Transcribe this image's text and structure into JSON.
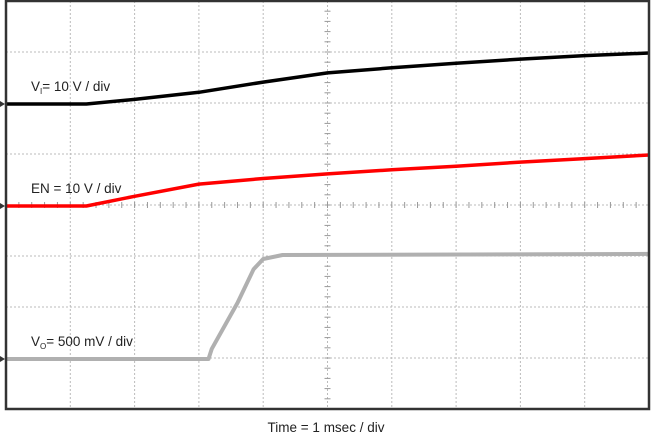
{
  "chart_data": {
    "type": "line",
    "title": "",
    "xlabel": "Time = 1 msec / div",
    "xlim": [
      0,
      10
    ],
    "ylim_divs": [
      -8,
      0
    ],
    "grid": true,
    "series": [
      {
        "name": "Vᵢ = 10 V / div",
        "label_main": "V",
        "label_sub": "I",
        "label_rest": "= 10 V / div",
        "color": "#000000",
        "scale_per_div": 10,
        "unit": "V",
        "x": [
          0,
          1.25,
          2,
          3,
          4,
          5,
          6,
          7,
          8,
          9,
          10
        ],
        "y": [
          0,
          0,
          0.9,
          2.3,
          4.3,
          6.1,
          7.1,
          8.0,
          8.8,
          9.5,
          10
        ]
      },
      {
        "name": "EN = 10 V / div",
        "label_main": "EN = 10 V / div",
        "label_sub": "",
        "label_rest": "",
        "color": "#ff0000",
        "scale_per_div": 10,
        "unit": "V",
        "x": [
          0,
          1.25,
          2,
          3,
          4,
          5,
          6,
          7,
          8,
          9,
          10
        ],
        "y": [
          0,
          0,
          1.9,
          4.3,
          5.4,
          6.3,
          7.1,
          7.8,
          8.6,
          9.3,
          10
        ]
      },
      {
        "name": "Vₒ = 500 mV / div",
        "label_main": "V",
        "label_sub": "O",
        "label_rest": "= 500 mV / div",
        "color": "#b0b0b0",
        "scale_per_div": 0.5,
        "unit": "V",
        "x": [
          0,
          3.15,
          3.2,
          3.6,
          3.85,
          4.0,
          4.3,
          10
        ],
        "y": [
          0,
          0,
          0.1,
          0.55,
          0.88,
          0.98,
          1.02,
          1.03
        ]
      }
    ]
  }
}
